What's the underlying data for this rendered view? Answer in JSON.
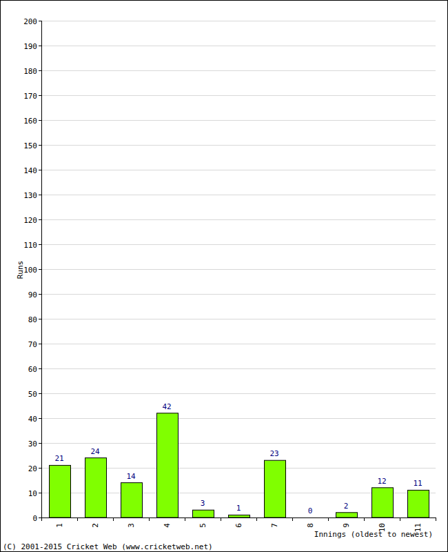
{
  "chart_data": {
    "type": "bar",
    "y_label": "Runs",
    "x_label": "Innings (oldest to newest)",
    "credit": "(C) 2001-2015 Cricket Web (www.cricketweb.net)",
    "categories": [
      "1",
      "2",
      "3",
      "4",
      "5",
      "6",
      "7",
      "8",
      "9",
      "10",
      "11"
    ],
    "values": [
      21,
      24,
      14,
      42,
      3,
      1,
      23,
      0,
      2,
      12,
      11
    ],
    "color": "#80ff00",
    "ylim": [
      0,
      200
    ],
    "yticks": [
      0,
      10,
      20,
      30,
      40,
      50,
      60,
      70,
      80,
      90,
      100,
      110,
      120,
      130,
      140,
      150,
      160,
      170,
      180,
      190,
      200
    ],
    "grid": true,
    "data_labels": true
  }
}
